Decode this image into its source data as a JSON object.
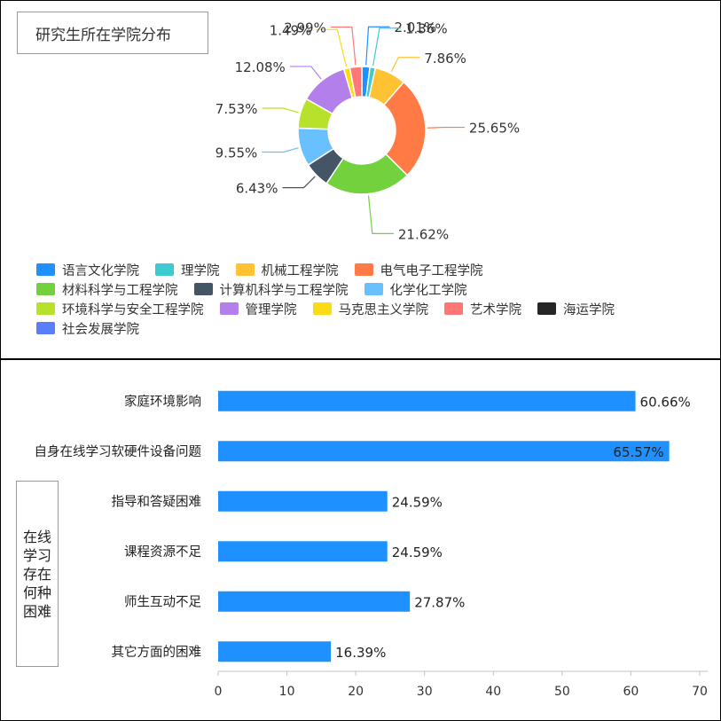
{
  "top_chart": {
    "title": "研究生所在学院分布",
    "chart_data": {
      "type": "pie",
      "categories": [
        "语言文化学院",
        "理学院",
        "机械工程学院",
        "电气电子工程学院",
        "材料科学与工程学院",
        "计算机科学与工程学院",
        "化学化工学院",
        "环境科学与安全工程学院",
        "管理学院",
        "马克思主义学院",
        "艺术学院",
        "海运学院",
        "社会发展学院"
      ],
      "values": [
        2.01,
        1.36,
        7.86,
        25.65,
        21.62,
        6.43,
        9.55,
        7.53,
        12.08,
        1.49,
        2.99,
        0,
        0
      ],
      "labels": [
        "2.01%",
        "1.36%",
        "7.86%",
        "25.65%",
        "21.62%",
        "6.43%",
        "9.55%",
        "7.53%",
        "12.08%",
        "1.49%",
        "2.99%",
        "",
        ""
      ],
      "colors": [
        "#1e90ff",
        "#3ecbd0",
        "#ffc233",
        "#ff7a45",
        "#73d13d",
        "#445566",
        "#69c0ff",
        "#b7e12b",
        "#b37feb",
        "#fadb14",
        "#ff7875",
        "#262626",
        "#597ef7"
      ],
      "legend_position": "bottom"
    }
  },
  "bottom_chart": {
    "axis_title": "在线学习存在何种困难",
    "chart_data": {
      "type": "bar",
      "orientation": "horizontal",
      "categories": [
        "家庭环境影响",
        "自身在线学习软硬件设备问题",
        "指导和答疑困难",
        "课程资源不足",
        "师生互动不足",
        "其它方面的困难"
      ],
      "values": [
        60.66,
        65.57,
        24.59,
        24.59,
        27.87,
        16.39
      ],
      "labels": [
        "60.66%",
        "65.57%",
        "24.59%",
        "24.59%",
        "27.87%",
        "16.39%"
      ],
      "xlim": [
        0,
        70
      ],
      "xticks": [
        "0",
        "10",
        "20",
        "30",
        "40",
        "50",
        "60",
        "70"
      ],
      "bar_color": "#1e90ff"
    }
  }
}
